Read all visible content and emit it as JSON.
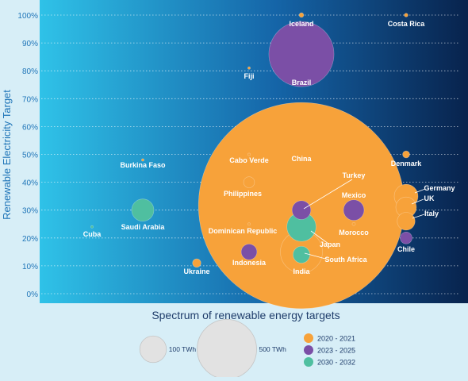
{
  "chart_data": {
    "type": "bubble",
    "xlabel": "Spectrum of renewable energy targets",
    "ylabel": "Renewable Electricity Target",
    "ylim": [
      0,
      100
    ],
    "yticks": [
      "0%",
      "10%",
      "20%",
      "30%",
      "40%",
      "50%",
      "60%",
      "70%",
      "80%",
      "90%",
      "100%"
    ],
    "ytick_values": [
      0,
      10,
      20,
      30,
      40,
      50,
      60,
      70,
      80,
      90,
      100
    ],
    "x_axis": "ordinal (no scale)",
    "grid": true,
    "colors": {
      "2020-2021": "#f7a23a",
      "2023-2025": "#7b4fa6",
      "2030-2032": "#4fbfa0",
      "label": "#ffffff",
      "tick": "#1f75b8",
      "gradient_left": "#2fc2e8",
      "gradient_right": "#08234d"
    },
    "legend": {
      "placement": "bottom",
      "size_items": [
        {
          "label": "100 TWh",
          "twh": 100
        },
        {
          "label": "500 TWh",
          "twh": 500
        }
      ],
      "color_items": [
        {
          "label": "2020 - 2021",
          "key": "2020-2021"
        },
        {
          "label": "2023 - 2025",
          "key": "2023-2025"
        },
        {
          "label": "2030 - 2032",
          "key": "2030-2032"
        }
      ]
    },
    "points": [
      {
        "name": "Iceland",
        "target": 100,
        "period": "2020-2021",
        "twh": 3
      },
      {
        "name": "Costa Rica",
        "target": 100,
        "period": "2020-2021",
        "twh": 2
      },
      {
        "name": "Brazil",
        "target": 86,
        "period": "2023-2025",
        "twh": 600
      },
      {
        "name": "Fiji",
        "target": 81,
        "period": "2020-2021",
        "twh": 0.3
      },
      {
        "name": "Cabo Verde",
        "target": 50,
        "period": "2020-2021",
        "twh": 0.3
      },
      {
        "name": "Denmark",
        "target": 50,
        "period": "2020-2021",
        "twh": 7
      },
      {
        "name": "Burkina Faso",
        "target": 48,
        "period": "2020-2021",
        "twh": 0.3
      },
      {
        "name": "China",
        "target": 33,
        "period": "2020-2021",
        "twh": 6000
      },
      {
        "name": "Turkey",
        "target": 30,
        "period": "2023-2025",
        "twh": 50
      },
      {
        "name": "Philippines",
        "target": 40,
        "period": "2020-2021",
        "twh": 17
      },
      {
        "name": "Germany",
        "target": 35,
        "period": "2020-2021",
        "twh": 80
      },
      {
        "name": "UK",
        "target": 31,
        "period": "2020-2021",
        "twh": 60
      },
      {
        "name": "Mexico",
        "target": 30,
        "period": "2023-2025",
        "twh": 60
      },
      {
        "name": "Saudi Arabia",
        "target": 30,
        "period": "2030-2032",
        "twh": 70
      },
      {
        "name": "Italy",
        "target": 26,
        "period": "2020-2021",
        "twh": 45
      },
      {
        "name": "Cuba",
        "target": 24,
        "period": "2030-2032",
        "twh": 0.3
      },
      {
        "name": "Dominican Republic",
        "target": 25,
        "period": "2020-2021",
        "twh": 0.5
      },
      {
        "name": "Morocco",
        "target": 25,
        "period": "2020-2021",
        "twh": 1.5
      },
      {
        "name": "Japan",
        "target": 24,
        "period": "2030-2032",
        "twh": 120
      },
      {
        "name": "Chile",
        "target": 20,
        "period": "2023-2025",
        "twh": 20
      },
      {
        "name": "Indonesia",
        "target": 15,
        "period": "2023-2025",
        "twh": 35
      },
      {
        "name": "India",
        "target": 15,
        "period": "2020-2021",
        "twh": 250
      },
      {
        "name": "South Africa",
        "target": 14,
        "period": "2030-2032",
        "twh": 40
      },
      {
        "name": "Ukraine",
        "target": 11,
        "period": "2020-2021",
        "twh": 10
      }
    ]
  }
}
